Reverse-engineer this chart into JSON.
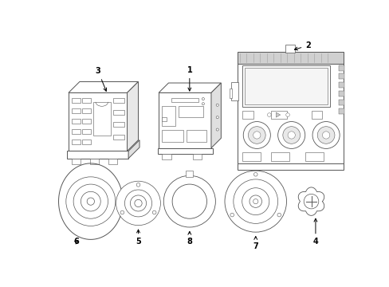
{
  "background_color": "#ffffff",
  "line_color": "#555555",
  "label_color": "#000000",
  "figsize": [
    4.89,
    3.6
  ],
  "dpi": 100
}
